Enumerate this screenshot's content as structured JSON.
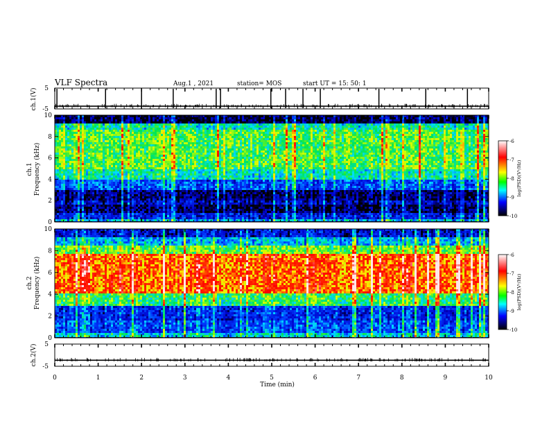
{
  "header": {
    "title": "VLF Spectra",
    "date": "Aug.1  , 2021",
    "station": "station= MOS",
    "start": "start  UT  =   15: 50: 1"
  },
  "colorbar": {
    "label": "log(PSD)(V²/Hz)",
    "ticks": [
      -6,
      -7,
      -8,
      -9,
      -10
    ],
    "stops": [
      "#ffffff",
      "#ff0000",
      "#ffff00",
      "#00ff00",
      "#00ffff",
      "#0000ff",
      "#000000"
    ]
  },
  "chart_data": [
    {
      "type": "line",
      "name": "waveform-ch1",
      "ylabel": "ch.1(V)",
      "ylim": [
        -5,
        5
      ],
      "yticks": [
        5,
        -5
      ],
      "xlim": [
        0,
        10
      ],
      "baseline": -3.7,
      "spike_times": [
        0.05,
        1.17,
        2.0,
        2.73,
        3.72,
        3.82,
        4.98,
        5.32,
        5.72,
        6.12,
        7.47,
        8.55,
        9.51
      ]
    },
    {
      "type": "heatmap",
      "name": "spectrogram-ch1",
      "ylabel": "ch.1\nFrequency (kHz)",
      "ylim": [
        0,
        10
      ],
      "yticks": [
        0,
        2,
        4,
        6,
        8,
        10
      ],
      "xlim": [
        0,
        10
      ],
      "zlim": [
        -10,
        -6
      ],
      "colorbar_label": "log(PSD)(V²/Hz)",
      "bands": [
        {
          "from": 0,
          "to": 0.3,
          "level": -8.6
        },
        {
          "from": 0.3,
          "to": 0.8,
          "level": -9.3
        },
        {
          "from": 0.8,
          "to": 1.6,
          "level": -9.8
        },
        {
          "from": 1.6,
          "to": 2.1,
          "level": -9.5
        },
        {
          "from": 2.1,
          "to": 3.0,
          "level": -9.8
        },
        {
          "from": 3.0,
          "to": 4.0,
          "level": -9.0
        },
        {
          "from": 4.0,
          "to": 5.0,
          "level": -8.3
        },
        {
          "from": 5.0,
          "to": 8.6,
          "level": -7.9
        },
        {
          "from": 8.6,
          "to": 9.2,
          "level": -8.3
        },
        {
          "from": 9.2,
          "to": 10.0,
          "level": -9.9
        }
      ]
    },
    {
      "type": "heatmap",
      "name": "spectrogram-ch2",
      "ylabel": "ch.2\nFrequency (kHz)",
      "ylim": [
        0,
        10
      ],
      "yticks": [
        0,
        2,
        4,
        6,
        8,
        10
      ],
      "xlim": [
        0,
        10
      ],
      "zlim": [
        -10,
        -6
      ],
      "colorbar_label": "log(PSD)(V²/Hz)",
      "bands": [
        {
          "from": 0,
          "to": 0.5,
          "level": -8.4
        },
        {
          "from": 0.5,
          "to": 1.5,
          "level": -9.0
        },
        {
          "from": 1.5,
          "to": 3.0,
          "level": -9.2
        },
        {
          "from": 3.0,
          "to": 4.0,
          "level": -8.0
        },
        {
          "from": 4.0,
          "to": 7.8,
          "level": -6.8
        },
        {
          "from": 7.8,
          "to": 8.5,
          "level": -7.8
        },
        {
          "from": 8.5,
          "to": 9.3,
          "level": -8.6
        },
        {
          "from": 9.3,
          "to": 10.0,
          "level": -9.4
        }
      ]
    },
    {
      "type": "line",
      "name": "waveform-ch2",
      "ylabel": "ch.2(V)",
      "ylim": [
        -5,
        5
      ],
      "yticks": [
        5,
        -5
      ],
      "xlim": [
        0,
        10
      ],
      "xlabel": "Time  (min)",
      "xticks": [
        0,
        1,
        2,
        3,
        4,
        5,
        6,
        7,
        8,
        9,
        10
      ],
      "baseline": -2.3,
      "spike_times": []
    }
  ]
}
